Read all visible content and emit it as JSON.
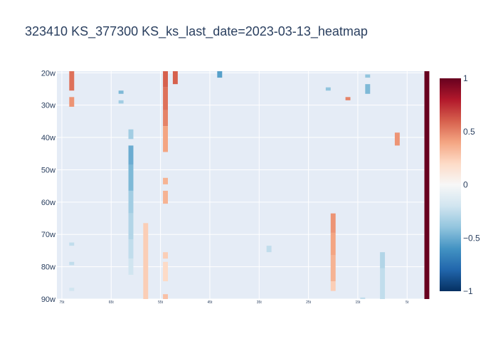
{
  "chart_data": {
    "type": "heatmap",
    "title": "323410 KS_377300 KS_ks_last_date=2023-03-13_heatmap",
    "xlabel": "",
    "ylabel": "",
    "x_axis": {
      "ticks": [
        "75t",
        "65t",
        "55t",
        "45t",
        "35t",
        "25t",
        "15t",
        "5t"
      ],
      "tick_values": [
        75,
        65,
        55,
        45,
        35,
        25,
        15,
        5
      ],
      "direction": "decreasing",
      "range": [
        76,
        1
      ]
    },
    "y_axis": {
      "ticks": [
        "20w",
        "30w",
        "40w",
        "50w",
        "60w",
        "70w",
        "80w",
        "90w"
      ],
      "tick_values": [
        20,
        30,
        40,
        50,
        60,
        70,
        80,
        90
      ],
      "direction": "reversed",
      "range": [
        19.5,
        90
      ]
    },
    "colorscale": "RdBu",
    "zlim": [
      -1,
      1
    ],
    "colorbar": {
      "ticks": [
        -1,
        -0.5,
        0,
        0.5,
        1
      ],
      "tick_labels": [
        "−1",
        "−0.5",
        "0",
        "0.5",
        "1"
      ]
    },
    "grid": true,
    "cells": [
      {
        "x": 73,
        "y0": 20,
        "y1": 25,
        "value": 0.55
      },
      {
        "x": 73,
        "y0": 28,
        "y1": 30,
        "value": 0.45
      },
      {
        "x": 73,
        "y0": 73,
        "y1": 73,
        "value": -0.25
      },
      {
        "x": 73,
        "y0": 79,
        "y1": 79,
        "value": -0.25
      },
      {
        "x": 73,
        "y0": 87,
        "y1": 87,
        "value": -0.2
      },
      {
        "x": 63,
        "y0": 26,
        "y1": 26,
        "value": -0.45
      },
      {
        "x": 63,
        "y0": 29,
        "y1": 29,
        "value": -0.35
      },
      {
        "x": 61,
        "y0": 38,
        "y1": 40,
        "value": -0.35
      },
      {
        "x": 61,
        "y0": 43,
        "y1": 48,
        "value": -0.5
      },
      {
        "x": 61,
        "y0": 49,
        "y1": 56,
        "value": -0.45
      },
      {
        "x": 61,
        "y0": 57,
        "y1": 63,
        "value": -0.35
      },
      {
        "x": 61,
        "y0": 64,
        "y1": 71,
        "value": -0.3
      },
      {
        "x": 61,
        "y0": 72,
        "y1": 77,
        "value": -0.25
      },
      {
        "x": 61,
        "y0": 78,
        "y1": 82,
        "value": -0.2
      },
      {
        "x": 58,
        "y0": 67,
        "y1": 90,
        "value": 0.25
      },
      {
        "x": 54,
        "y0": 20,
        "y1": 24,
        "value": 0.6
      },
      {
        "x": 54,
        "y0": 25,
        "y1": 31,
        "value": 0.55
      },
      {
        "x": 54,
        "y0": 32,
        "y1": 36,
        "value": 0.5
      },
      {
        "x": 54,
        "y0": 37,
        "y1": 44,
        "value": 0.4
      },
      {
        "x": 54,
        "y0": 53,
        "y1": 54,
        "value": 0.35
      },
      {
        "x": 54,
        "y0": 57,
        "y1": 60,
        "value": 0.35
      },
      {
        "x": 54,
        "y0": 76,
        "y1": 77,
        "value": 0.25
      },
      {
        "x": 54,
        "y0": 79,
        "y1": 84,
        "value": 0.2
      },
      {
        "x": 54,
        "y0": 89,
        "y1": 90,
        "value": 0.3
      },
      {
        "x": 52,
        "y0": 20,
        "y1": 23,
        "value": 0.6
      },
      {
        "x": 43,
        "y0": 20,
        "y1": 21,
        "value": -0.55
      },
      {
        "x": 33,
        "y0": 74,
        "y1": 75,
        "value": -0.25
      },
      {
        "x": 21,
        "y0": 25,
        "y1": 25,
        "value": -0.4
      },
      {
        "x": 20,
        "y0": 64,
        "y1": 69,
        "value": 0.45
      },
      {
        "x": 20,
        "y0": 70,
        "y1": 76,
        "value": 0.4
      },
      {
        "x": 20,
        "y0": 77,
        "y1": 84,
        "value": 0.35
      },
      {
        "x": 20,
        "y0": 85,
        "y1": 87,
        "value": 0.25
      },
      {
        "x": 17,
        "y0": 28,
        "y1": 28,
        "value": 0.5
      },
      {
        "x": 14,
        "y0": 90,
        "y1": 90,
        "value": -0.25
      },
      {
        "x": 13,
        "y0": 21,
        "y1": 21,
        "value": -0.4
      },
      {
        "x": 13,
        "y0": 24,
        "y1": 26,
        "value": -0.45
      },
      {
        "x": 10,
        "y0": 76,
        "y1": 80,
        "value": -0.3
      },
      {
        "x": 10,
        "y0": 81,
        "y1": 90,
        "value": -0.25
      },
      {
        "x": 7,
        "y0": 39,
        "y1": 42,
        "value": 0.45
      },
      {
        "x": 1,
        "y0": 20,
        "y1": 90,
        "value": 1.0
      }
    ]
  }
}
